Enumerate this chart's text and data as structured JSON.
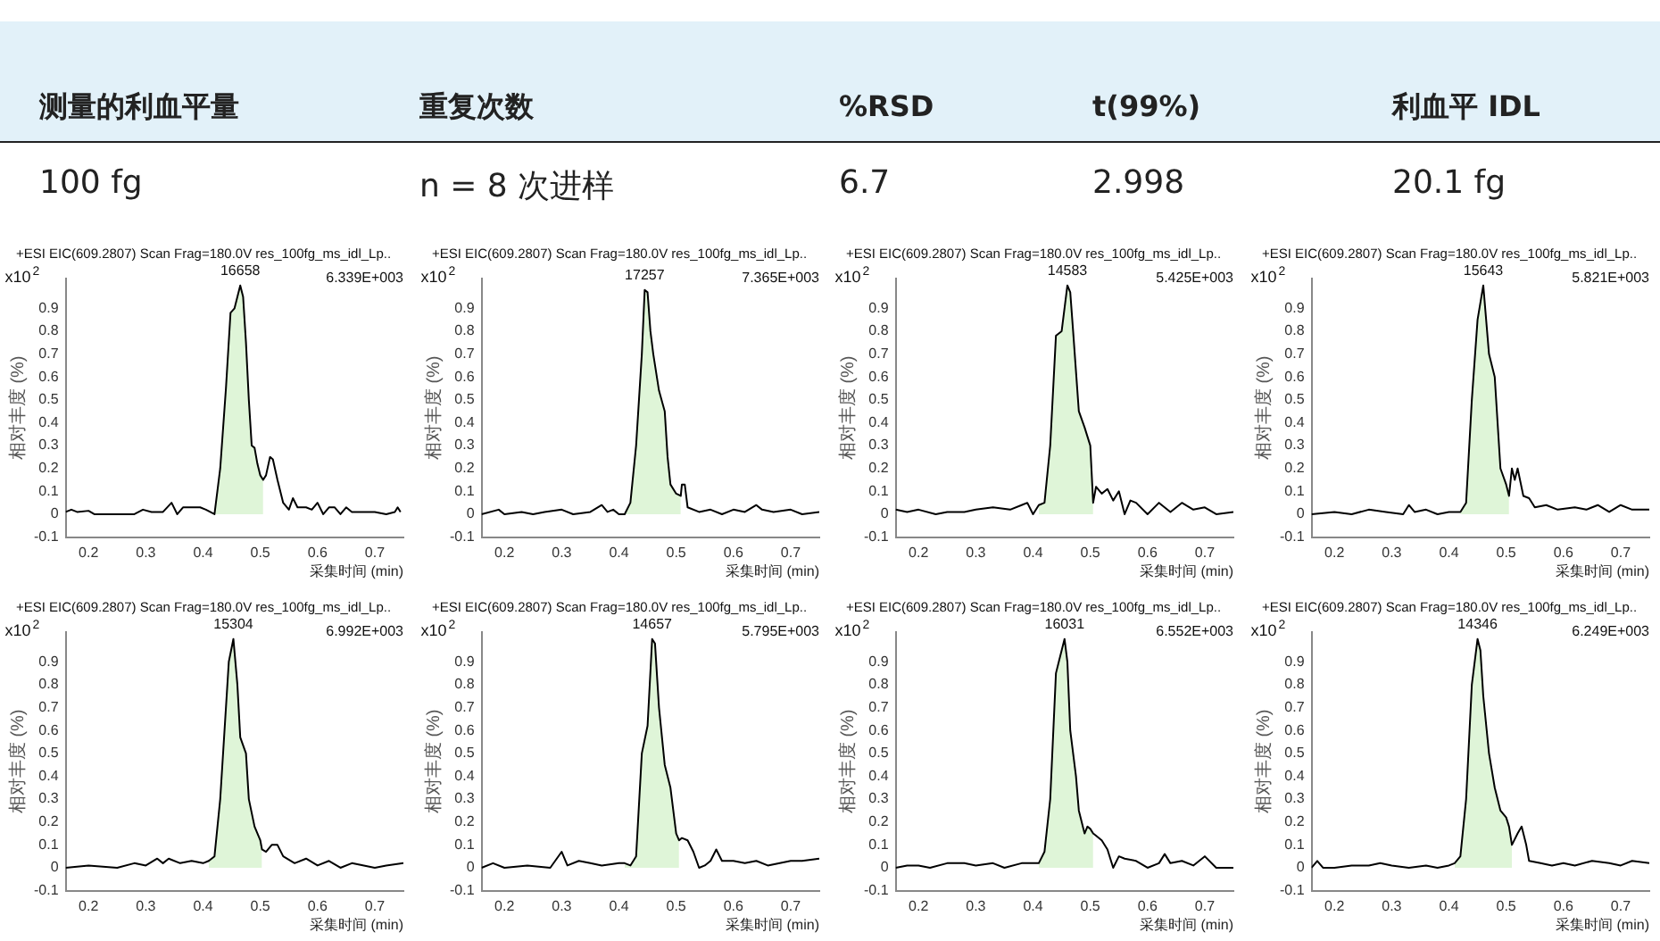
{
  "chart_data": [
    {
      "type": "other",
      "annotations": [
        "测量的利血平量",
        "重复次数",
        "%RSD",
        "t(99%)",
        "利血平 IDL",
        "100 fg",
        "n = 8 次进样",
        "6.7",
        "2.998",
        "20.1 fg"
      ]
    },
    {
      "type": "line",
      "title": "+ESI EIC(609.2807) Scan Frag=180.0V res_100fg_ms_idl_Lp..",
      "xlabel": "采集时间 (min)",
      "ylabel": "相对丰度 (%)",
      "annotations": [
        "x10$^{2}$",
        "6.339E+003",
        {
          "text": "16658",
          "x": 0.465,
          "y": 1.0
        }
      ],
      "xlim": [
        0.16,
        0.75
      ],
      "xticks": [
        0.2,
        0.3,
        0.4,
        0.5,
        0.6,
        0.7
      ],
      "ylim": [
        -0.1,
        1.03
      ],
      "yticks": [
        -0.1,
        0,
        0.1,
        0.2,
        0.3,
        0.4,
        0.5,
        0.6,
        0.7,
        0.8,
        0.9
      ],
      "grid": false,
      "legend": false,
      "marker": "none",
      "series": [
        {
          "type": "area",
          "color": "#dff5d8",
          "x": [
            0.42,
            0.43,
            0.44,
            0.448,
            0.455,
            0.46,
            0.465,
            0.47,
            0.475,
            0.48,
            0.485,
            0.49,
            0.495,
            0.5,
            0.505
          ],
          "values": [
            0,
            0.2,
            0.55,
            0.88,
            0.9,
            0.95,
            1.0,
            0.95,
            0.75,
            0.5,
            0.3,
            0.29,
            0.22,
            0.17,
            0.15
          ]
        },
        {
          "type": "line",
          "color": "#000000",
          "x": [
            0.16,
            0.17,
            0.18,
            0.2,
            0.21,
            0.25,
            0.28,
            0.295,
            0.31,
            0.33,
            0.345,
            0.355,
            0.365,
            0.38,
            0.395,
            0.405,
            0.42,
            0.43,
            0.44,
            0.448,
            0.455,
            0.46,
            0.465,
            0.47,
            0.475,
            0.48,
            0.485,
            0.49,
            0.495,
            0.5,
            0.505,
            0.51,
            0.517,
            0.522,
            0.53,
            0.54,
            0.55,
            0.557,
            0.565,
            0.58,
            0.59,
            0.6,
            0.61,
            0.62,
            0.63,
            0.64,
            0.65,
            0.66,
            0.68,
            0.7,
            0.72,
            0.735,
            0.74,
            0.745
          ],
          "values": [
            0.01,
            0.02,
            0.01,
            0.015,
            0,
            0,
            0,
            0.02,
            0.01,
            0.01,
            0.05,
            0,
            0.03,
            0.03,
            0.03,
            0.02,
            0,
            0.2,
            0.55,
            0.88,
            0.9,
            0.95,
            1.0,
            0.95,
            0.75,
            0.5,
            0.3,
            0.29,
            0.22,
            0.17,
            0.15,
            0.17,
            0.25,
            0.24,
            0.15,
            0.05,
            0.02,
            0.07,
            0.03,
            0.03,
            0.02,
            0.05,
            0,
            0.03,
            0.03,
            0,
            0.03,
            0.01,
            0.01,
            0.01,
            0,
            0.01,
            0.03,
            0.01
          ]
        }
      ]
    },
    {
      "type": "line",
      "title": "+ESI EIC(609.2807) Scan Frag=180.0V res_100fg_ms_idl_Lp..",
      "xlabel": "采集时间 (min)",
      "ylabel": "相对丰度 (%)",
      "annotations": [
        "x10$^{2}$",
        "7.365E+003",
        {
          "text": "17257",
          "x": 0.445,
          "y": 0.98
        }
      ],
      "xlim": [
        0.16,
        0.75
      ],
      "xticks": [
        0.2,
        0.3,
        0.4,
        0.5,
        0.6,
        0.7
      ],
      "ylim": [
        -0.1,
        1.03
      ],
      "yticks": [
        -0.1,
        0,
        0.1,
        0.2,
        0.3,
        0.4,
        0.5,
        0.6,
        0.7,
        0.8,
        0.9
      ],
      "grid": false,
      "legend": false,
      "marker": "none",
      "series": [
        {
          "type": "area",
          "color": "#dff5d8",
          "x": [
            0.41,
            0.42,
            0.43,
            0.44,
            0.445,
            0.45,
            0.455,
            0.46,
            0.47,
            0.48,
            0.485,
            0.49,
            0.5,
            0.508
          ],
          "values": [
            0,
            0.05,
            0.3,
            0.7,
            0.98,
            0.97,
            0.8,
            0.7,
            0.54,
            0.45,
            0.25,
            0.13,
            0.09,
            0.08
          ]
        },
        {
          "type": "line",
          "color": "#000000",
          "x": [
            0.16,
            0.19,
            0.2,
            0.23,
            0.25,
            0.27,
            0.3,
            0.32,
            0.35,
            0.37,
            0.38,
            0.39,
            0.4,
            0.41,
            0.42,
            0.43,
            0.44,
            0.445,
            0.45,
            0.455,
            0.46,
            0.47,
            0.48,
            0.485,
            0.49,
            0.5,
            0.508,
            0.51,
            0.515,
            0.52,
            0.54,
            0.56,
            0.58,
            0.6,
            0.62,
            0.64,
            0.65,
            0.67,
            0.7,
            0.72,
            0.75
          ],
          "values": [
            0,
            0.02,
            0,
            0.01,
            0,
            0.01,
            0.02,
            0,
            0.01,
            0.04,
            0.01,
            0.02,
            0,
            0,
            0.05,
            0.3,
            0.7,
            0.98,
            0.97,
            0.8,
            0.7,
            0.54,
            0.45,
            0.25,
            0.13,
            0.09,
            0.08,
            0.13,
            0.13,
            0.03,
            0.01,
            0.02,
            0,
            0.02,
            0.01,
            0.04,
            0.02,
            0.01,
            0.02,
            0,
            0.01
          ]
        }
      ]
    },
    {
      "type": "line",
      "title": "+ESI EIC(609.2807) Scan Frag=180.0V res_100fg_ms_idl_Lp..",
      "xlabel": "采集时间 (min)",
      "ylabel": "相对丰度 (%)",
      "annotations": [
        "x10$^{2}$",
        "5.425E+003",
        {
          "text": "14583",
          "x": 0.46,
          "y": 1.0
        }
      ],
      "xlim": [
        0.16,
        0.75
      ],
      "xticks": [
        0.2,
        0.3,
        0.4,
        0.5,
        0.6,
        0.7
      ],
      "ylim": [
        -0.1,
        1.03
      ],
      "yticks": [
        -0.1,
        0,
        0.1,
        0.2,
        0.3,
        0.4,
        0.5,
        0.6,
        0.7,
        0.8,
        0.9
      ],
      "grid": false,
      "legend": false,
      "marker": "none",
      "series": [
        {
          "type": "area",
          "color": "#dff5d8",
          "x": [
            0.41,
            0.42,
            0.43,
            0.44,
            0.45,
            0.46,
            0.465,
            0.47,
            0.48,
            0.49,
            0.5,
            0.505
          ],
          "values": [
            0.04,
            0.05,
            0.3,
            0.78,
            0.8,
            1.0,
            0.97,
            0.8,
            0.45,
            0.38,
            0.3,
            0.05
          ]
        },
        {
          "type": "line",
          "color": "#000000",
          "x": [
            0.16,
            0.18,
            0.2,
            0.23,
            0.25,
            0.28,
            0.3,
            0.33,
            0.36,
            0.38,
            0.39,
            0.4,
            0.41,
            0.42,
            0.43,
            0.44,
            0.45,
            0.46,
            0.465,
            0.47,
            0.48,
            0.49,
            0.5,
            0.505,
            0.51,
            0.52,
            0.53,
            0.54,
            0.55,
            0.56,
            0.57,
            0.58,
            0.6,
            0.62,
            0.64,
            0.66,
            0.68,
            0.7,
            0.72,
            0.75
          ],
          "values": [
            0.02,
            0.01,
            0.02,
            0,
            0.01,
            0.01,
            0.02,
            0.03,
            0.02,
            0.04,
            0.05,
            0,
            0.04,
            0.05,
            0.3,
            0.78,
            0.8,
            1.0,
            0.97,
            0.8,
            0.45,
            0.38,
            0.3,
            0.05,
            0.12,
            0.09,
            0.11,
            0.06,
            0.1,
            0,
            0.06,
            0.05,
            0,
            0.05,
            0.01,
            0.05,
            0.02,
            0.03,
            0,
            0.01
          ]
        }
      ]
    },
    {
      "type": "line",
      "title": "+ESI EIC(609.2807) Scan Frag=180.0V res_100fg_ms_idl_Lp..",
      "xlabel": "采集时间 (min)",
      "ylabel": "相对丰度 (%)",
      "annotations": [
        "x10$^{2}$",
        "5.821E+003",
        {
          "text": "15643",
          "x": 0.46,
          "y": 1.0
        }
      ],
      "xlim": [
        0.16,
        0.75
      ],
      "xticks": [
        0.2,
        0.3,
        0.4,
        0.5,
        0.6,
        0.7
      ],
      "ylim": [
        -0.1,
        1.03
      ],
      "yticks": [
        -0.1,
        0,
        0.1,
        0.2,
        0.3,
        0.4,
        0.5,
        0.6,
        0.7,
        0.8,
        0.9
      ],
      "grid": false,
      "legend": false,
      "marker": "none",
      "series": [
        {
          "type": "area",
          "color": "#dff5d8",
          "x": [
            0.42,
            0.43,
            0.44,
            0.45,
            0.46,
            0.47,
            0.48,
            0.49,
            0.5,
            0.505
          ],
          "values": [
            0.01,
            0.05,
            0.5,
            0.85,
            1.0,
            0.7,
            0.6,
            0.2,
            0.13,
            0.08
          ]
        },
        {
          "type": "line",
          "color": "#000000",
          "x": [
            0.16,
            0.2,
            0.23,
            0.26,
            0.29,
            0.32,
            0.33,
            0.34,
            0.36,
            0.38,
            0.4,
            0.42,
            0.43,
            0.44,
            0.45,
            0.46,
            0.47,
            0.48,
            0.49,
            0.5,
            0.505,
            0.51,
            0.515,
            0.52,
            0.53,
            0.54,
            0.55,
            0.57,
            0.59,
            0.62,
            0.64,
            0.66,
            0.68,
            0.7,
            0.72,
            0.75
          ],
          "values": [
            0,
            0.01,
            0,
            0.02,
            0.01,
            0,
            0.04,
            0.01,
            0.02,
            0,
            0.01,
            0.01,
            0.05,
            0.5,
            0.85,
            1.0,
            0.7,
            0.6,
            0.2,
            0.13,
            0.08,
            0.2,
            0.15,
            0.2,
            0.08,
            0.07,
            0.03,
            0.04,
            0.02,
            0.03,
            0.02,
            0.04,
            0.01,
            0.04,
            0.02,
            0.02
          ]
        }
      ]
    },
    {
      "type": "line",
      "title": "+ESI EIC(609.2807) Scan Frag=180.0V res_100fg_ms_idl_Lp..",
      "xlabel": "采集时间 (min)",
      "ylabel": "相对丰度 (%)",
      "annotations": [
        "x10$^{2}$",
        "6.992E+003",
        {
          "text": "15304",
          "x": 0.453,
          "y": 1.0
        }
      ],
      "xlim": [
        0.16,
        0.75
      ],
      "xticks": [
        0.2,
        0.3,
        0.4,
        0.5,
        0.6,
        0.7
      ],
      "ylim": [
        -0.1,
        1.03
      ],
      "yticks": [
        -0.1,
        0,
        0.1,
        0.2,
        0.3,
        0.4,
        0.5,
        0.6,
        0.7,
        0.8,
        0.9
      ],
      "grid": false,
      "legend": false,
      "marker": "none",
      "series": [
        {
          "type": "area",
          "color": "#dff5d8",
          "x": [
            0.41,
            0.42,
            0.43,
            0.445,
            0.453,
            0.46,
            0.465,
            0.475,
            0.48,
            0.49,
            0.5,
            0.503
          ],
          "values": [
            0.03,
            0.05,
            0.3,
            0.9,
            1.0,
            0.8,
            0.57,
            0.5,
            0.3,
            0.18,
            0.12,
            0.08
          ]
        },
        {
          "type": "line",
          "color": "#000000",
          "x": [
            0.16,
            0.2,
            0.25,
            0.28,
            0.3,
            0.32,
            0.33,
            0.34,
            0.36,
            0.38,
            0.4,
            0.41,
            0.42,
            0.43,
            0.445,
            0.453,
            0.46,
            0.465,
            0.475,
            0.48,
            0.49,
            0.5,
            0.503,
            0.51,
            0.52,
            0.53,
            0.54,
            0.56,
            0.58,
            0.6,
            0.62,
            0.64,
            0.66,
            0.7,
            0.72,
            0.75
          ],
          "values": [
            0,
            0.01,
            0,
            0.02,
            0.01,
            0.04,
            0.02,
            0.04,
            0.02,
            0.03,
            0.02,
            0.03,
            0.05,
            0.3,
            0.9,
            1.0,
            0.8,
            0.57,
            0.5,
            0.3,
            0.18,
            0.12,
            0.08,
            0.07,
            0.1,
            0.1,
            0.05,
            0.02,
            0.04,
            0.01,
            0.03,
            0,
            0.02,
            0,
            0.01,
            0.02
          ]
        }
      ]
    },
    {
      "type": "line",
      "title": "+ESI EIC(609.2807) Scan Frag=180.0V res_100fg_ms_idl_Lp..",
      "xlabel": "采集时间 (min)",
      "ylabel": "相对丰度 (%)",
      "annotations": [
        "x10$^{2}$",
        "5.795E+003",
        {
          "text": "14657",
          "x": 0.458,
          "y": 1.0
        }
      ],
      "xlim": [
        0.16,
        0.75
      ],
      "xticks": [
        0.2,
        0.3,
        0.4,
        0.5,
        0.6,
        0.7
      ],
      "ylim": [
        -0.1,
        1.03
      ],
      "yticks": [
        -0.1,
        0,
        0.1,
        0.2,
        0.3,
        0.4,
        0.5,
        0.6,
        0.7,
        0.8,
        0.9
      ],
      "grid": false,
      "legend": false,
      "marker": "none",
      "series": [
        {
          "type": "area",
          "color": "#dff5d8",
          "x": [
            0.41,
            0.42,
            0.43,
            0.44,
            0.45,
            0.458,
            0.463,
            0.47,
            0.48,
            0.49,
            0.5,
            0.505
          ],
          "values": [
            0.02,
            0.01,
            0.05,
            0.5,
            0.62,
            1.0,
            0.98,
            0.7,
            0.45,
            0.35,
            0.15,
            0.12
          ]
        },
        {
          "type": "line",
          "color": "#000000",
          "x": [
            0.16,
            0.18,
            0.2,
            0.24,
            0.28,
            0.3,
            0.31,
            0.33,
            0.35,
            0.37,
            0.4,
            0.41,
            0.42,
            0.43,
            0.44,
            0.45,
            0.458,
            0.463,
            0.47,
            0.48,
            0.49,
            0.5,
            0.505,
            0.51,
            0.52,
            0.53,
            0.54,
            0.55,
            0.56,
            0.57,
            0.58,
            0.6,
            0.62,
            0.64,
            0.66,
            0.7,
            0.72,
            0.75
          ],
          "values": [
            0,
            0.02,
            0,
            0.01,
            0,
            0.07,
            0.01,
            0.03,
            0.02,
            0.01,
            0.02,
            0.02,
            0.01,
            0.05,
            0.5,
            0.62,
            1.0,
            0.98,
            0.7,
            0.45,
            0.35,
            0.15,
            0.12,
            0.13,
            0.12,
            0.07,
            0,
            0.01,
            0.03,
            0.08,
            0.03,
            0.03,
            0.02,
            0.03,
            0.01,
            0.03,
            0.03,
            0.04
          ]
        }
      ]
    },
    {
      "type": "line",
      "title": "+ESI EIC(609.2807) Scan Frag=180.0V res_100fg_ms_idl_Lp..",
      "xlabel": "采集时间 (min)",
      "ylabel": "相对丰度 (%)",
      "annotations": [
        "x10$^{2}$",
        "6.552E+003",
        {
          "text": "16031",
          "x": 0.455,
          "y": 1.0
        }
      ],
      "xlim": [
        0.16,
        0.75
      ],
      "xticks": [
        0.2,
        0.3,
        0.4,
        0.5,
        0.6,
        0.7
      ],
      "ylim": [
        -0.1,
        1.03
      ],
      "yticks": [
        -0.1,
        0,
        0.1,
        0.2,
        0.3,
        0.4,
        0.5,
        0.6,
        0.7,
        0.8,
        0.9
      ],
      "grid": false,
      "legend": false,
      "marker": "none",
      "series": [
        {
          "type": "area",
          "color": "#dff5d8",
          "x": [
            0.41,
            0.42,
            0.43,
            0.44,
            0.445,
            0.455,
            0.46,
            0.465,
            0.475,
            0.48,
            0.49,
            0.495,
            0.5,
            0.505
          ],
          "values": [
            0.02,
            0.07,
            0.3,
            0.85,
            0.9,
            1.0,
            0.9,
            0.6,
            0.4,
            0.25,
            0.15,
            0.18,
            0.17,
            0.15
          ]
        },
        {
          "type": "line",
          "color": "#000000",
          "x": [
            0.16,
            0.18,
            0.2,
            0.22,
            0.25,
            0.28,
            0.3,
            0.33,
            0.35,
            0.38,
            0.4,
            0.41,
            0.42,
            0.43,
            0.44,
            0.445,
            0.455,
            0.46,
            0.465,
            0.475,
            0.48,
            0.49,
            0.495,
            0.5,
            0.505,
            0.51,
            0.52,
            0.53,
            0.54,
            0.55,
            0.56,
            0.58,
            0.6,
            0.62,
            0.63,
            0.64,
            0.66,
            0.68,
            0.7,
            0.72,
            0.75
          ],
          "values": [
            0,
            0.01,
            0.01,
            0,
            0.02,
            0.02,
            0.01,
            0.02,
            0,
            0.02,
            0.02,
            0.02,
            0.07,
            0.3,
            0.85,
            0.9,
            1.0,
            0.9,
            0.6,
            0.4,
            0.25,
            0.15,
            0.18,
            0.17,
            0.15,
            0.14,
            0.12,
            0.08,
            0,
            0.05,
            0.04,
            0.03,
            0,
            0.02,
            0.06,
            0.02,
            0.03,
            0.01,
            0.05,
            0,
            0
          ]
        }
      ]
    },
    {
      "type": "line",
      "title": "+ESI EIC(609.2807) Scan Frag=180.0V res_100fg_ms_idl_Lp..",
      "xlabel": "采集时间 (min)",
      "ylabel": "相对丰度 (%)",
      "annotations": [
        "x10$^{2}$",
        "6.249E+003",
        {
          "text": "14346",
          "x": 0.45,
          "y": 1.0
        }
      ],
      "xlim": [
        0.16,
        0.75
      ],
      "xticks": [
        0.2,
        0.3,
        0.4,
        0.5,
        0.6,
        0.7
      ],
      "ylim": [
        -0.1,
        1.03
      ],
      "yticks": [
        -0.1,
        0,
        0.1,
        0.2,
        0.3,
        0.4,
        0.5,
        0.6,
        0.7,
        0.8,
        0.9
      ],
      "grid": false,
      "legend": false,
      "marker": "none",
      "series": [
        {
          "type": "area",
          "color": "#dff5d8",
          "x": [
            0.41,
            0.42,
            0.43,
            0.44,
            0.45,
            0.455,
            0.46,
            0.47,
            0.48,
            0.49,
            0.5,
            0.505,
            0.51
          ],
          "values": [
            0.02,
            0.05,
            0.3,
            0.8,
            1.0,
            0.95,
            0.75,
            0.5,
            0.35,
            0.25,
            0.22,
            0.18,
            0.1
          ]
        },
        {
          "type": "line",
          "color": "#000000",
          "x": [
            0.16,
            0.17,
            0.18,
            0.2,
            0.23,
            0.26,
            0.28,
            0.3,
            0.33,
            0.36,
            0.38,
            0.4,
            0.41,
            0.42,
            0.43,
            0.44,
            0.45,
            0.455,
            0.46,
            0.47,
            0.48,
            0.49,
            0.5,
            0.505,
            0.51,
            0.52,
            0.527,
            0.535,
            0.54,
            0.56,
            0.58,
            0.6,
            0.62,
            0.65,
            0.68,
            0.7,
            0.72,
            0.75
          ],
          "values": [
            0,
            0.03,
            0,
            0,
            0.01,
            0.01,
            0.02,
            0.01,
            0,
            0.01,
            0,
            0.01,
            0.02,
            0.05,
            0.3,
            0.8,
            1.0,
            0.95,
            0.75,
            0.5,
            0.35,
            0.25,
            0.22,
            0.18,
            0.1,
            0.15,
            0.18,
            0.1,
            0.03,
            0.02,
            0.01,
            0.02,
            0.01,
            0.03,
            0.02,
            0.01,
            0.03,
            0.02
          ]
        }
      ]
    }
  ]
}
